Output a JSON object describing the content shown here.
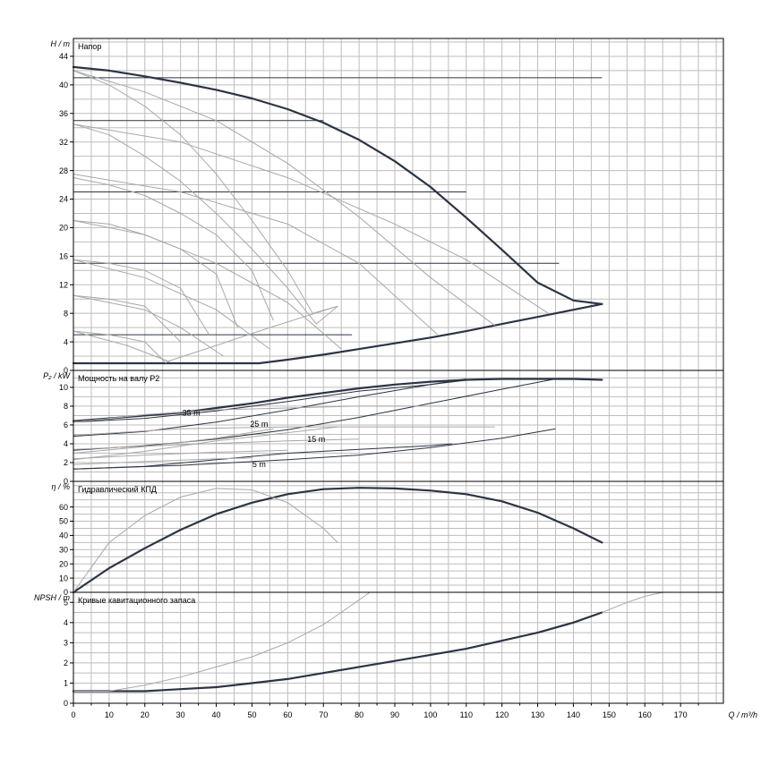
{
  "x_axis": {
    "label": "Q / m³/h",
    "ticks": [
      0,
      10,
      20,
      30,
      40,
      50,
      60,
      70,
      80,
      90,
      100,
      110,
      120,
      130,
      140,
      150,
      160,
      170
    ],
    "range": [
      0,
      182
    ]
  },
  "chart_data": [
    {
      "type": "line",
      "title": "Напор",
      "ylabel": "H / m",
      "yticks": [
        0,
        4,
        8,
        12,
        16,
        20,
        24,
        28,
        32,
        36,
        40,
        44
      ],
      "ylim": [
        0,
        46.5
      ],
      "grid": true,
      "series": [
        {
          "style": "thick",
          "x": [
            0,
            10,
            20,
            30,
            40,
            50,
            60,
            70,
            80,
            90,
            100,
            110,
            120,
            130,
            140,
            148
          ],
          "y": [
            42.5,
            42,
            41.2,
            40.3,
            39.3,
            38.1,
            36.6,
            34.7,
            32.3,
            29.3,
            25.7,
            21.4,
            16.9,
            12.3,
            9.8,
            9.3
          ]
        },
        {
          "style": "thick",
          "x": [
            0,
            10,
            20,
            30,
            40,
            52,
            60,
            70,
            80,
            90,
            100,
            110,
            120,
            130,
            140,
            148
          ],
          "y": [
            1,
            1,
            1,
            1,
            1,
            1,
            1.5,
            2.2,
            3,
            3.8,
            4.6,
            5.5,
            6.5,
            7.5,
            8.5,
            9.3
          ]
        },
        {
          "style": "mid",
          "x": [
            0,
            148
          ],
          "y": [
            41,
            41
          ]
        },
        {
          "style": "mid",
          "x": [
            0,
            70
          ],
          "y": [
            35,
            35
          ]
        },
        {
          "style": "mid",
          "x": [
            0,
            110
          ],
          "y": [
            25,
            25
          ]
        },
        {
          "style": "mid",
          "x": [
            0,
            136
          ],
          "y": [
            15,
            15
          ]
        },
        {
          "style": "mid",
          "x": [
            0,
            78
          ],
          "y": [
            5,
            5
          ]
        },
        {
          "style": "thin",
          "x": [
            0,
            10,
            20,
            30,
            40,
            50,
            60,
            67,
            74
          ],
          "y": [
            42,
            40,
            37,
            33,
            27.5,
            21,
            14,
            8,
            9
          ]
        },
        {
          "style": "thin",
          "x": [
            0,
            20,
            40,
            60,
            80,
            100,
            118
          ],
          "y": [
            42,
            39,
            35,
            29,
            21.5,
            13,
            6.3
          ]
        },
        {
          "style": "thin",
          "x": [
            0,
            10,
            20,
            30,
            40,
            50,
            60,
            68,
            74
          ],
          "y": [
            34.5,
            33,
            30,
            26.5,
            22,
            17,
            11.5,
            6.5,
            9
          ]
        },
        {
          "style": "thin",
          "x": [
            0,
            30,
            60,
            90,
            110,
            133
          ],
          "y": [
            34.5,
            32,
            27,
            20.5,
            15.5,
            8
          ]
        },
        {
          "style": "thin",
          "x": [
            0,
            10,
            20,
            30,
            40,
            50,
            56
          ],
          "y": [
            27,
            26,
            24.5,
            22,
            19,
            14,
            7
          ]
        },
        {
          "style": "thin",
          "x": [
            0,
            30,
            60,
            80,
            102
          ],
          "y": [
            27.5,
            25,
            20.5,
            15,
            5
          ]
        },
        {
          "style": "thin",
          "x": [
            0,
            10,
            20,
            30,
            40,
            46
          ],
          "y": [
            21,
            20.5,
            19,
            17,
            13.5,
            6
          ]
        },
        {
          "style": "thin",
          "x": [
            0,
            20,
            40,
            60,
            75
          ],
          "y": [
            21,
            19,
            15,
            9.5,
            3
          ]
        },
        {
          "style": "thin",
          "x": [
            0,
            10,
            20,
            30,
            38
          ],
          "y": [
            15.5,
            15,
            14,
            11.5,
            5
          ]
        },
        {
          "style": "thin",
          "x": [
            0,
            20,
            40,
            55
          ],
          "y": [
            15.5,
            13,
            8.5,
            3
          ]
        },
        {
          "style": "thin",
          "x": [
            0,
            10,
            20,
            30
          ],
          "y": [
            10.5,
            10,
            9,
            4
          ]
        },
        {
          "style": "thin",
          "x": [
            0,
            20,
            30,
            42
          ],
          "y": [
            10.5,
            8.5,
            6,
            2
          ]
        },
        {
          "style": "thin",
          "x": [
            0,
            10,
            20,
            26
          ],
          "y": [
            5.5,
            5,
            4,
            1
          ]
        },
        {
          "style": "thin",
          "x": [
            0,
            15,
            27
          ],
          "y": [
            5.5,
            3.5,
            1.2
          ]
        },
        {
          "style": "thin",
          "x": [
            26,
            40,
            55,
            74
          ],
          "y": [
            1.2,
            3.5,
            6,
            9
          ]
        }
      ]
    },
    {
      "type": "line",
      "title": "Мощность на валу P2",
      "ylabel": "P₂ / kW",
      "yticks": [
        0,
        2,
        4,
        6,
        8,
        10
      ],
      "ylim": [
        0,
        11.8
      ],
      "grid": true,
      "annotations": [
        {
          "text": "35 m",
          "x": 33,
          "y": 7
        },
        {
          "text": "25 m",
          "x": 52,
          "y": 5.8
        },
        {
          "text": "15 m",
          "x": 68,
          "y": 4.2
        },
        {
          "text": "5 m",
          "x": 52,
          "y": 1.5
        }
      ],
      "series": [
        {
          "style": "thick",
          "x": [
            0,
            10,
            20,
            30,
            40,
            50,
            60,
            70,
            80,
            90,
            100,
            110,
            120,
            130,
            140,
            148
          ],
          "y": [
            6.4,
            6.7,
            7,
            7.3,
            7.8,
            8.3,
            8.9,
            9.4,
            9.9,
            10.3,
            10.6,
            10.8,
            10.9,
            10.9,
            10.9,
            10.8
          ]
        },
        {
          "style": "mid",
          "x": [
            0,
            20,
            40,
            60,
            80,
            100,
            111
          ],
          "y": [
            6.3,
            6.7,
            7.5,
            8.5,
            9.6,
            10.3,
            10.8
          ]
        },
        {
          "style": "mid",
          "x": [
            0,
            20,
            40,
            60,
            80,
            100,
            110
          ],
          "y": [
            4.8,
            5.3,
            6.3,
            7.6,
            9,
            10.3,
            10.9
          ]
        },
        {
          "style": "mid",
          "x": [
            0,
            20,
            40,
            60,
            80,
            100,
            120,
            135
          ],
          "y": [
            3.3,
            3.8,
            4.5,
            5.5,
            6.8,
            8.3,
            9.8,
            10.9
          ]
        },
        {
          "style": "mid",
          "x": [
            0,
            20,
            40,
            60,
            80,
            100,
            106
          ],
          "y": [
            1.3,
            1.6,
            2.3,
            3,
            3.4,
            3.8,
            4
          ]
        },
        {
          "style": "mid",
          "x": [
            0,
            30,
            60,
            80,
            100,
            120,
            135
          ],
          "y": [
            1.3,
            1.7,
            2.3,
            2.8,
            3.6,
            4.6,
            5.6
          ]
        },
        {
          "style": "thin",
          "x": [
            0,
            20,
            40,
            60,
            80,
            100,
            130
          ],
          "y": [
            6.3,
            7.1,
            7.6,
            7.8,
            8,
            8,
            8
          ]
        },
        {
          "style": "thin",
          "x": [
            0,
            30,
            60,
            90,
            118
          ],
          "y": [
            4.9,
            5.6,
            5.8,
            5.8,
            5.8
          ]
        },
        {
          "style": "thin",
          "x": [
            0,
            30,
            60,
            80
          ],
          "y": [
            3.4,
            3.9,
            4.3,
            4.5
          ]
        },
        {
          "style": "thin",
          "x": [
            0,
            20,
            40,
            60
          ],
          "y": [
            2.4,
            2.8,
            3.1,
            3.3
          ]
        },
        {
          "style": "thin",
          "x": [
            0,
            20,
            40,
            50
          ],
          "y": [
            1.8,
            2.1,
            2.4,
            2.5
          ]
        },
        {
          "style": "thin",
          "x": [
            0,
            20,
            40,
            56
          ],
          "y": [
            3,
            3.7,
            4.6,
            5.6
          ]
        },
        {
          "style": "thin",
          "x": [
            0,
            20,
            40,
            74
          ],
          "y": [
            2.3,
            3.2,
            4.3,
            5.8
          ]
        }
      ]
    },
    {
      "type": "line",
      "title": "Гидравлический КПД",
      "ylabel": "η / %",
      "yticks": [
        0,
        10,
        20,
        30,
        40,
        50,
        60
      ],
      "ylim": [
        0,
        78
      ],
      "grid": true,
      "series": [
        {
          "style": "thick",
          "x": [
            0,
            10,
            20,
            30,
            40,
            50,
            60,
            70,
            80,
            90,
            100,
            110,
            120,
            130,
            140,
            148
          ],
          "y": [
            0,
            17,
            31,
            44,
            55,
            63,
            69,
            72.5,
            73.5,
            73,
            71.5,
            69,
            64,
            56,
            45,
            35
          ]
        },
        {
          "style": "thin",
          "x": [
            0,
            10,
            20,
            30,
            40,
            50,
            60,
            70,
            74
          ],
          "y": [
            0,
            35,
            54,
            67,
            73,
            72,
            63,
            45,
            35
          ]
        }
      ]
    },
    {
      "type": "line",
      "title": "Кривые кавитационного запаса",
      "ylabel": "NPSH / m",
      "yticks": [
        0,
        1,
        2,
        3,
        4,
        5
      ],
      "ylim": [
        0,
        5.5
      ],
      "grid": true,
      "series": [
        {
          "style": "thick",
          "x": [
            0,
            10,
            18,
            20,
            30,
            40,
            50,
            60,
            70,
            80,
            90,
            100,
            110,
            120,
            130,
            140,
            148
          ],
          "y": [
            0.6,
            0.6,
            0.6,
            0.6,
            0.7,
            0.8,
            1,
            1.2,
            1.5,
            1.8,
            2.1,
            2.4,
            2.7,
            3.1,
            3.5,
            4,
            4.5
          ]
        },
        {
          "style": "thin",
          "x": [
            148,
            155,
            160,
            165
          ],
          "y": [
            4.5,
            5,
            5.3,
            5.5
          ]
        },
        {
          "style": "thin",
          "x": [
            0,
            10,
            20,
            30,
            40,
            50,
            60,
            70,
            75,
            83
          ],
          "y": [
            0.6,
            0.6,
            0.9,
            1.3,
            1.8,
            2.3,
            3,
            3.9,
            4.5,
            5.5
          ]
        }
      ]
    }
  ]
}
